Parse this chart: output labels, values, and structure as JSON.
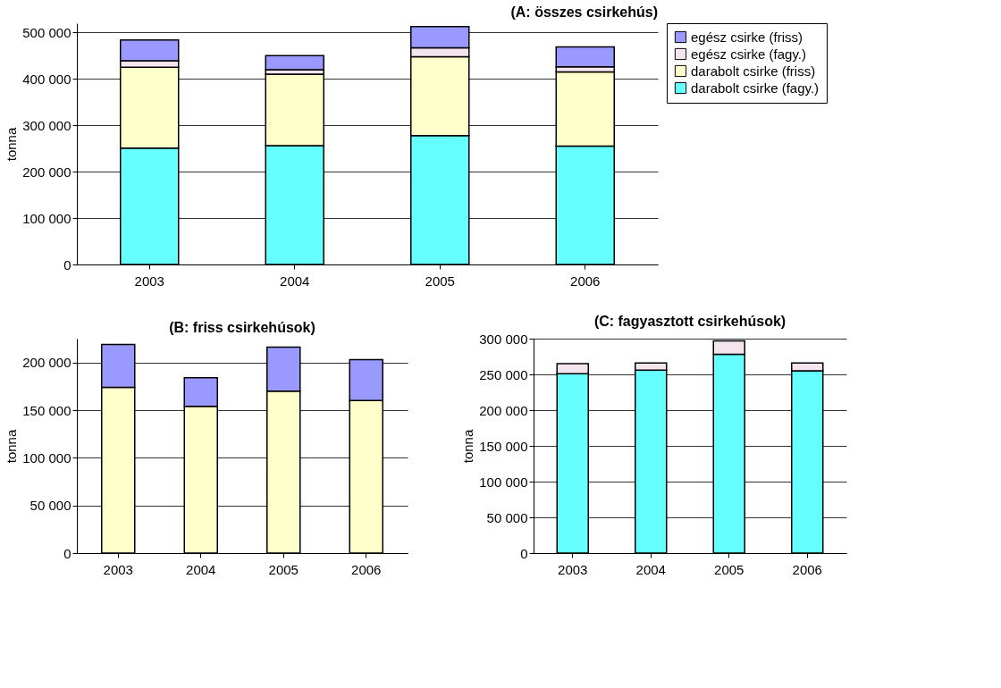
{
  "chart_data": [
    {
      "type": "bar",
      "title": "(A: összes csirkehús)",
      "ylabel": "tonna",
      "stacked": true,
      "grid": "y",
      "legend": "right",
      "categories": [
        "2003",
        "2004",
        "2005",
        "2006"
      ],
      "ylim": [
        0,
        520000
      ],
      "yticks": [
        0,
        {
          "value": 100000,
          "label": "100 000"
        },
        {
          "value": 200000,
          "label": "200 000"
        },
        {
          "value": 300000,
          "label": "300 000"
        },
        {
          "value": 400000,
          "label": "400 000"
        },
        {
          "value": 500000,
          "label": "500 000"
        }
      ],
      "series": [
        {
          "name": "darabolt csirke (fagy.)",
          "color": "#66ffff",
          "values": [
            251000,
            256000,
            278000,
            255000
          ]
        },
        {
          "name": "darabolt csirke (friss)",
          "color": "#ffffcc",
          "values": [
            174000,
            154000,
            170000,
            160000
          ]
        },
        {
          "name": "egész csirke (fagy.)",
          "color": "#f4e4ee",
          "values": [
            14000,
            10000,
            19000,
            11000
          ]
        },
        {
          "name": "egész csirke (friss)",
          "color": "#9999ff",
          "values": [
            45000,
            30000,
            46000,
            43000
          ]
        }
      ]
    },
    {
      "type": "bar",
      "title": "(B: friss csirkehúsok)",
      "ylabel": "tonna",
      "stacked": true,
      "grid": "y",
      "categories": [
        "2003",
        "2004",
        "2005",
        "2006"
      ],
      "ylim": [
        0,
        225000
      ],
      "yticks": [
        0,
        {
          "value": 50000,
          "label": "50 000"
        },
        {
          "value": 100000,
          "label": "100 000"
        },
        {
          "value": 150000,
          "label": "150 000"
        },
        {
          "value": 200000,
          "label": "200 000"
        }
      ],
      "series": [
        {
          "color": "#ffffcc",
          "values": [
            174000,
            154000,
            170000,
            160000
          ]
        },
        {
          "color": "#9999ff",
          "values": [
            45000,
            30000,
            46000,
            43000
          ]
        }
      ]
    },
    {
      "type": "bar",
      "title": "(C: fagyasztott csirkehúsok)",
      "ylabel": "tonna",
      "stacked": true,
      "grid": "y",
      "categories": [
        "2003",
        "2004",
        "2005",
        "2006"
      ],
      "ylim": [
        0,
        300000
      ],
      "yticks": [
        0,
        {
          "value": 50000,
          "label": "50 000"
        },
        {
          "value": 100000,
          "label": "100 000"
        },
        {
          "value": 150000,
          "label": "150 000"
        },
        {
          "value": 200000,
          "label": "200 000"
        },
        {
          "value": 250000,
          "label": "250 000"
        },
        {
          "value": 300000,
          "label": "300 000"
        }
      ],
      "series": [
        {
          "color": "#66ffff",
          "values": [
            251000,
            256000,
            278000,
            255000
          ]
        },
        {
          "color": "#f4e4ee",
          "values": [
            14000,
            10000,
            19000,
            11000
          ]
        }
      ]
    }
  ]
}
